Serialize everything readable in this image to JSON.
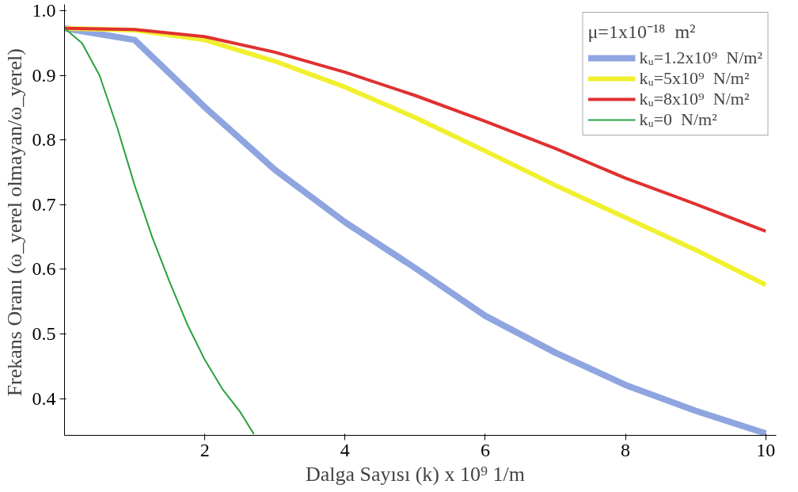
{
  "chart_data": {
    "type": "line",
    "xlabel": "Dalga Sayısı (k) x 10⁹   1/m",
    "ylabel": "Frekans Oranı  (ω_yerel olmayan/ω_yerel)",
    "legend_title": "μ=1x10⁻¹⁸  m²",
    "x": [
      0,
      1,
      2,
      3,
      4,
      5,
      6,
      7,
      8,
      9,
      10
    ],
    "series": [
      {
        "name": "kᵤ=1.2x10⁹  N/m²",
        "color": "#8fa5e0",
        "values": [
          0.973,
          0.955,
          0.851,
          0.754,
          0.673,
          0.602,
          0.528,
          0.471,
          0.421,
          0.381,
          0.346
        ]
      },
      {
        "name": "kᵤ=5x10⁹  N/m²",
        "color": "#f0f030",
        "values": [
          0.973,
          0.97,
          0.955,
          0.922,
          0.882,
          0.835,
          0.783,
          0.73,
          0.68,
          0.63,
          0.576
        ]
      },
      {
        "name": "kᵤ=8x10⁹  N/m²",
        "color": "#e03030",
        "values": [
          0.973,
          0.971,
          0.96,
          0.936,
          0.905,
          0.869,
          0.829,
          0.787,
          0.741,
          0.701,
          0.659
        ]
      },
      {
        "name": "kᵤ=0  N/m²",
        "color": "#2aa040",
        "x": [
          0,
          0.25,
          0.5,
          0.75,
          1,
          1.25,
          1.5,
          1.75,
          2,
          2.25,
          2.5,
          2.7
        ],
        "values": [
          0.973,
          0.95,
          0.9,
          0.82,
          0.73,
          0.65,
          0.58,
          0.515,
          0.46,
          0.415,
          0.38,
          0.345
        ]
      }
    ],
    "xlim": [
      0,
      10.15
    ],
    "ylim": [
      0.343,
      1.01
    ],
    "xticks": [
      2,
      4,
      6,
      8,
      10
    ],
    "yticks": [
      0.4,
      0.5,
      0.6,
      0.7,
      0.8,
      0.9,
      {
        "value": 1.0,
        "label": "1.0"
      }
    ],
    "grid": false,
    "legend": "top right",
    "marker": "none",
    "line_style": "solid"
  }
}
